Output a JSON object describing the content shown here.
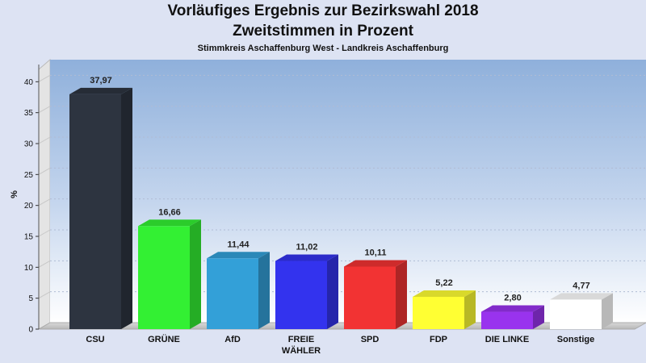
{
  "chart_data": {
    "type": "bar",
    "title": "Vorläufiges Ergebnis zur Bezirkswahl 2018",
    "subtitle": "Zweitstimmen in Prozent",
    "subsubtitle": "Stimmkreis Aschaffenburg West - Landkreis Aschaffenburg",
    "ylabel": "%",
    "xlabel": "",
    "ylim": [
      0,
      42
    ],
    "yticks": [
      0,
      5,
      10,
      15,
      20,
      25,
      30,
      35,
      40
    ],
    "grid": true,
    "categories": [
      "CSU",
      "GRÜNE",
      "AfD",
      "FREIE WÄHLER",
      "SPD",
      "FDP",
      "DIE LINKE",
      "Sonstige"
    ],
    "category_lines": [
      [
        "CSU"
      ],
      [
        "GRÜNE"
      ],
      [
        "AfD"
      ],
      [
        "FREIE",
        "WÄHLER"
      ],
      [
        "SPD"
      ],
      [
        "FDP"
      ],
      [
        "DIE LINKE"
      ],
      [
        "Sonstige"
      ]
    ],
    "values": [
      37.97,
      16.66,
      11.44,
      11.02,
      10.11,
      5.22,
      2.8,
      4.77
    ],
    "value_labels": [
      "37,97",
      "16,66",
      "11,44",
      "11,02",
      "10,11",
      "5,22",
      "2,80",
      "4,77"
    ],
    "colors": [
      "#2d3440",
      "#33f033",
      "#33a0d8",
      "#3333ee",
      "#f23333",
      "#ffff33",
      "#9933ee",
      "#ffffff"
    ]
  }
}
